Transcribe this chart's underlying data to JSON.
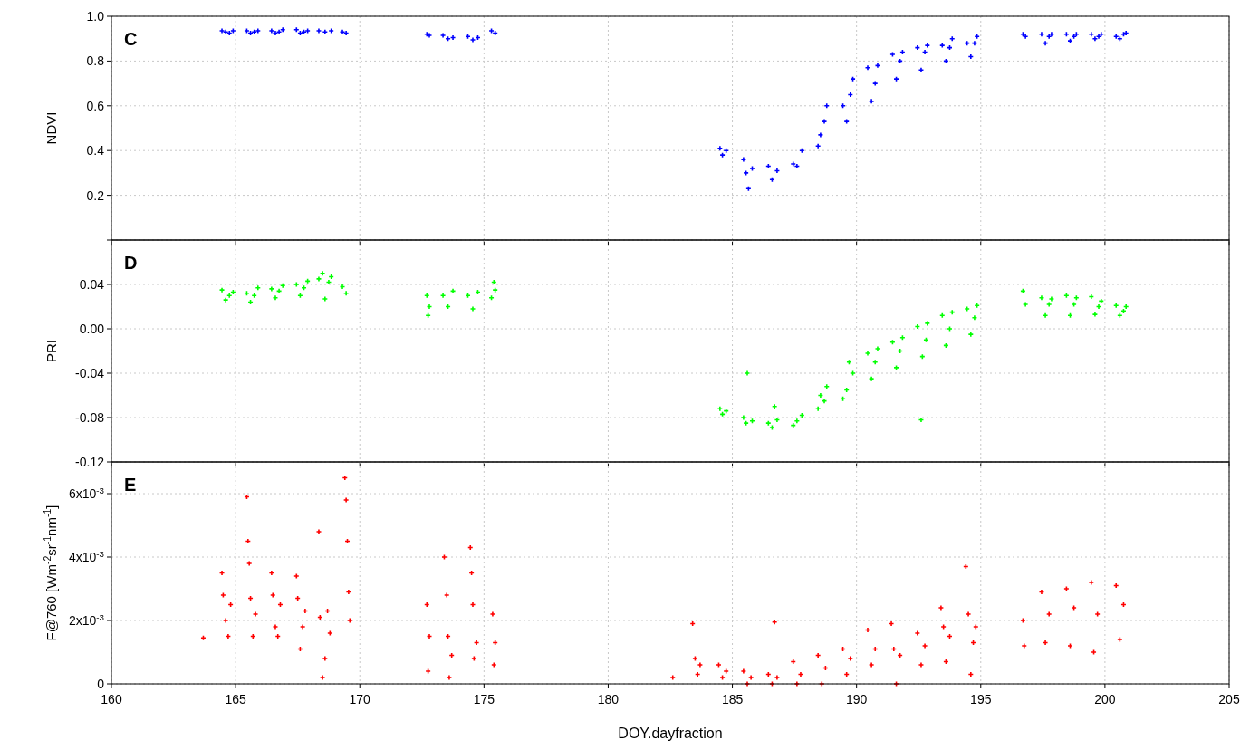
{
  "chart_data": [
    {
      "type": "scatter",
      "annotations": [
        "C"
      ],
      "ylabel": "NDVI",
      "xlim": [
        160,
        205
      ],
      "xticks": [
        160,
        165,
        170,
        175,
        180,
        185,
        190,
        195,
        200,
        205
      ],
      "ylim": [
        0,
        1
      ],
      "yticks": [
        {
          "value": 0,
          "label": null
        },
        {
          "value": 0.2,
          "label": "0.2"
        },
        {
          "value": 0.4,
          "label": "0.4"
        },
        {
          "value": 0.6,
          "label": "0.6"
        },
        {
          "value": 0.8,
          "label": "0.8"
        },
        {
          "value": 1,
          "label": "1.0"
        }
      ],
      "grid": true,
      "marker": "cross",
      "tick_labels": "y",
      "x": [
        164.45,
        164.6,
        164.75,
        164.9,
        165.45,
        165.6,
        165.75,
        165.9,
        166.45,
        166.6,
        166.75,
        166.9,
        167.45,
        167.6,
        167.75,
        167.9,
        168.35,
        168.6,
        168.85,
        169.3,
        169.45,
        172.7,
        172.8,
        173.35,
        173.55,
        173.75,
        174.35,
        174.55,
        174.75,
        175.3,
        175.45,
        184.5,
        184.6,
        184.75,
        185.45,
        185.55,
        185.65,
        185.8,
        186.45,
        186.6,
        186.8,
        187.45,
        187.6,
        187.8,
        188.45,
        188.55,
        188.7,
        188.8,
        189.45,
        189.6,
        189.75,
        189.85,
        190.45,
        190.6,
        190.75,
        190.85,
        191.45,
        191.6,
        191.75,
        191.85,
        192.45,
        192.6,
        192.75,
        192.85,
        193.45,
        193.6,
        193.75,
        193.85,
        194.45,
        194.6,
        194.75,
        194.85,
        196.7,
        196.8,
        197.45,
        197.6,
        197.75,
        197.85,
        198.45,
        198.6,
        198.75,
        198.85,
        199.45,
        199.6,
        199.75,
        199.85,
        200.45,
        200.6,
        200.75,
        200.85
      ],
      "series": [
        {
          "color": "#0000ff",
          "values": [
            0.935,
            0.93,
            0.925,
            0.935,
            0.935,
            0.925,
            0.93,
            0.935,
            0.935,
            0.925,
            0.93,
            0.94,
            0.94,
            0.925,
            0.93,
            0.935,
            0.935,
            0.93,
            0.935,
            0.93,
            0.925,
            0.92,
            0.915,
            0.915,
            0.9,
            0.905,
            0.91,
            0.895,
            0.905,
            0.935,
            0.925,
            0.41,
            0.38,
            0.4,
            0.36,
            0.3,
            0.23,
            0.32,
            0.33,
            0.27,
            0.31,
            0.34,
            0.33,
            0.4,
            0.42,
            0.47,
            0.53,
            0.6,
            0.6,
            0.53,
            0.65,
            0.72,
            0.77,
            0.62,
            0.7,
            0.78,
            0.83,
            0.72,
            0.8,
            0.84,
            0.86,
            0.76,
            0.84,
            0.87,
            0.87,
            0.8,
            0.86,
            0.9,
            0.88,
            0.82,
            0.88,
            0.91,
            0.92,
            0.91,
            0.92,
            0.88,
            0.91,
            0.92,
            0.92,
            0.89,
            0.91,
            0.92,
            0.92,
            0.9,
            0.91,
            0.92,
            0.91,
            0.9,
            0.92,
            0.925
          ]
        }
      ]
    },
    {
      "type": "scatter",
      "annotations": [
        "D"
      ],
      "ylabel": "PRI",
      "xlim": [
        160,
        205
      ],
      "xticks": [
        160,
        165,
        170,
        175,
        180,
        185,
        190,
        195,
        200,
        205
      ],
      "ylim": [
        -0.12,
        0.08
      ],
      "yticks": [
        {
          "value": -0.12,
          "label": "-0.12"
        },
        {
          "value": -0.08,
          "label": "-0.08"
        },
        {
          "value": -0.04,
          "label": "-0.04"
        },
        {
          "value": 0,
          "label": "0.00"
        },
        {
          "value": 0.04,
          "label": "0.04"
        }
      ],
      "grid": true,
      "marker": "cross",
      "tick_labels": "y",
      "x": [
        164.45,
        164.6,
        164.75,
        164.9,
        165.45,
        165.6,
        165.75,
        165.9,
        166.45,
        166.6,
        166.75,
        166.9,
        167.45,
        167.6,
        167.75,
        167.9,
        168.35,
        168.5,
        168.6,
        168.75,
        168.85,
        169.3,
        169.45,
        172.7,
        172.75,
        172.8,
        173.35,
        173.55,
        173.75,
        174.35,
        174.55,
        174.75,
        175.3,
        175.4,
        175.45,
        184.5,
        184.6,
        184.75,
        185.45,
        185.55,
        185.6,
        185.8,
        186.45,
        186.6,
        186.7,
        186.8,
        187.45,
        187.6,
        187.8,
        188.45,
        188.55,
        188.7,
        188.8,
        189.45,
        189.6,
        189.7,
        189.85,
        190.45,
        190.6,
        190.75,
        190.85,
        191.45,
        191.6,
        191.75,
        191.85,
        192.45,
        192.6,
        192.65,
        192.8,
        192.85,
        193.45,
        193.6,
        193.75,
        193.85,
        194.45,
        194.6,
        194.75,
        194.85,
        196.7,
        196.8,
        197.45,
        197.6,
        197.75,
        197.85,
        198.45,
        198.6,
        198.75,
        198.85,
        199.45,
        199.6,
        199.75,
        199.85,
        200.45,
        200.6,
        200.75,
        200.85
      ],
      "series": [
        {
          "color": "#00ff00",
          "values": [
            0.035,
            0.026,
            0.03,
            0.033,
            0.032,
            0.024,
            0.03,
            0.037,
            0.036,
            0.028,
            0.034,
            0.039,
            0.04,
            0.03,
            0.037,
            0.043,
            0.045,
            0.05,
            0.027,
            0.042,
            0.047,
            0.038,
            0.032,
            0.03,
            0.012,
            0.02,
            0.03,
            0.02,
            0.034,
            0.03,
            0.018,
            0.033,
            0.028,
            0.042,
            0.035,
            -0.072,
            -0.077,
            -0.074,
            -0.08,
            -0.085,
            -0.04,
            -0.083,
            -0.085,
            -0.089,
            -0.07,
            -0.082,
            -0.087,
            -0.083,
            -0.078,
            -0.072,
            -0.06,
            -0.065,
            -0.052,
            -0.063,
            -0.055,
            -0.03,
            -0.04,
            -0.022,
            -0.045,
            -0.03,
            -0.018,
            -0.012,
            -0.035,
            -0.02,
            -0.008,
            0.002,
            -0.082,
            -0.025,
            -0.01,
            0.005,
            0.012,
            -0.015,
            0,
            0.015,
            0.018,
            -0.005,
            0.01,
            0.021,
            0.034,
            0.022,
            0.028,
            0.012,
            0.022,
            0.027,
            0.03,
            0.012,
            0.022,
            0.028,
            0.029,
            0.013,
            0.02,
            0.025,
            0.021,
            0.012,
            0.016,
            0.02
          ]
        }
      ]
    },
    {
      "type": "scatter",
      "annotations": [
        "E"
      ],
      "ylabel": "F@760 [Wm$^{-2}$sr$^{-1}$nm$^{-1}$]",
      "xlabel": "DOY.dayfraction",
      "xlim": [
        160,
        205
      ],
      "xticks": [
        160,
        165,
        170,
        175,
        180,
        185,
        190,
        195,
        200,
        205
      ],
      "ylim": [
        0,
        0.007
      ],
      "yticks": [
        {
          "value": 0,
          "label": "0"
        },
        {
          "value": 0.002,
          "label": "2x10$^{-3}$"
        },
        {
          "value": 0.004,
          "label": "4x10$^{-3}$"
        },
        {
          "value": 0.006,
          "label": "6x10$^{-3}$"
        }
      ],
      "grid": true,
      "marker": "cross",
      "x": [
        163.7,
        164.45,
        164.5,
        164.6,
        164.7,
        164.8,
        165.45,
        165.5,
        165.55,
        165.6,
        165.7,
        165.8,
        166.45,
        166.5,
        166.6,
        166.7,
        166.8,
        167.45,
        167.5,
        167.6,
        167.7,
        167.8,
        168.35,
        168.4,
        168.5,
        168.6,
        168.7,
        168.8,
        169.4,
        169.45,
        169.5,
        169.55,
        169.6,
        172.7,
        172.75,
        172.8,
        173.4,
        173.5,
        173.55,
        173.6,
        173.7,
        174.45,
        174.5,
        174.55,
        174.6,
        174.7,
        175.35,
        175.4,
        175.45,
        182.6,
        183.4,
        183.5,
        183.6,
        183.7,
        184.45,
        184.6,
        184.75,
        185.45,
        185.6,
        185.75,
        186.45,
        186.6,
        186.7,
        186.8,
        187.45,
        187.6,
        187.75,
        188.45,
        188.6,
        188.75,
        189.45,
        189.6,
        189.75,
        190.45,
        190.6,
        190.75,
        191.4,
        191.5,
        191.6,
        191.75,
        192.45,
        192.6,
        192.75,
        193.4,
        193.5,
        193.6,
        193.75,
        194.4,
        194.5,
        194.6,
        194.7,
        194.8,
        196.7,
        196.75,
        197.45,
        197.6,
        197.75,
        198.45,
        198.6,
        198.75,
        199.45,
        199.55,
        199.7,
        200.45,
        200.6,
        200.75
      ],
      "series": [
        {
          "color": "#ff0000",
          "values": [
            0.00145,
            0.0035,
            0.0028,
            0.002,
            0.0015,
            0.0025,
            0.0059,
            0.0045,
            0.0038,
            0.0027,
            0.0015,
            0.0022,
            0.0035,
            0.0028,
            0.0018,
            0.0015,
            0.0025,
            0.0034,
            0.0027,
            0.0011,
            0.0018,
            0.0023,
            0.0048,
            0.0021,
            0.0002,
            0.0008,
            0.0023,
            0.0016,
            0.0065,
            0.0058,
            0.0045,
            0.0029,
            0.002,
            0.0025,
            0.0004,
            0.0015,
            0.004,
            0.0028,
            0.0015,
            0.0002,
            0.0009,
            0.0043,
            0.0035,
            0.0025,
            0.0008,
            0.0013,
            0.0022,
            0.0006,
            0.0013,
            0.0002,
            0.0019,
            0.0008,
            0.0003,
            0.0006,
            0.0006,
            0.0002,
            0.0004,
            0.0004,
            0,
            0.0002,
            0.0003,
            0,
            0.00195,
            0.0002,
            0.0007,
            0,
            0.0003,
            0.0009,
            0,
            0.0005,
            0.0011,
            0.0003,
            0.0008,
            0.0017,
            0.0006,
            0.0011,
            0.0019,
            0.0011,
            0,
            0.0009,
            0.0016,
            0.0006,
            0.0012,
            0.0024,
            0.0018,
            0.0007,
            0.0015,
            0.0037,
            0.0022,
            0.0003,
            0.0013,
            0.0018,
            0.002,
            0.0012,
            0.0029,
            0.0013,
            0.0022,
            0.003,
            0.0012,
            0.0024,
            0.0032,
            0.001,
            0.0022,
            0.0031,
            0.0014,
            0.0025
          ]
        }
      ]
    }
  ]
}
